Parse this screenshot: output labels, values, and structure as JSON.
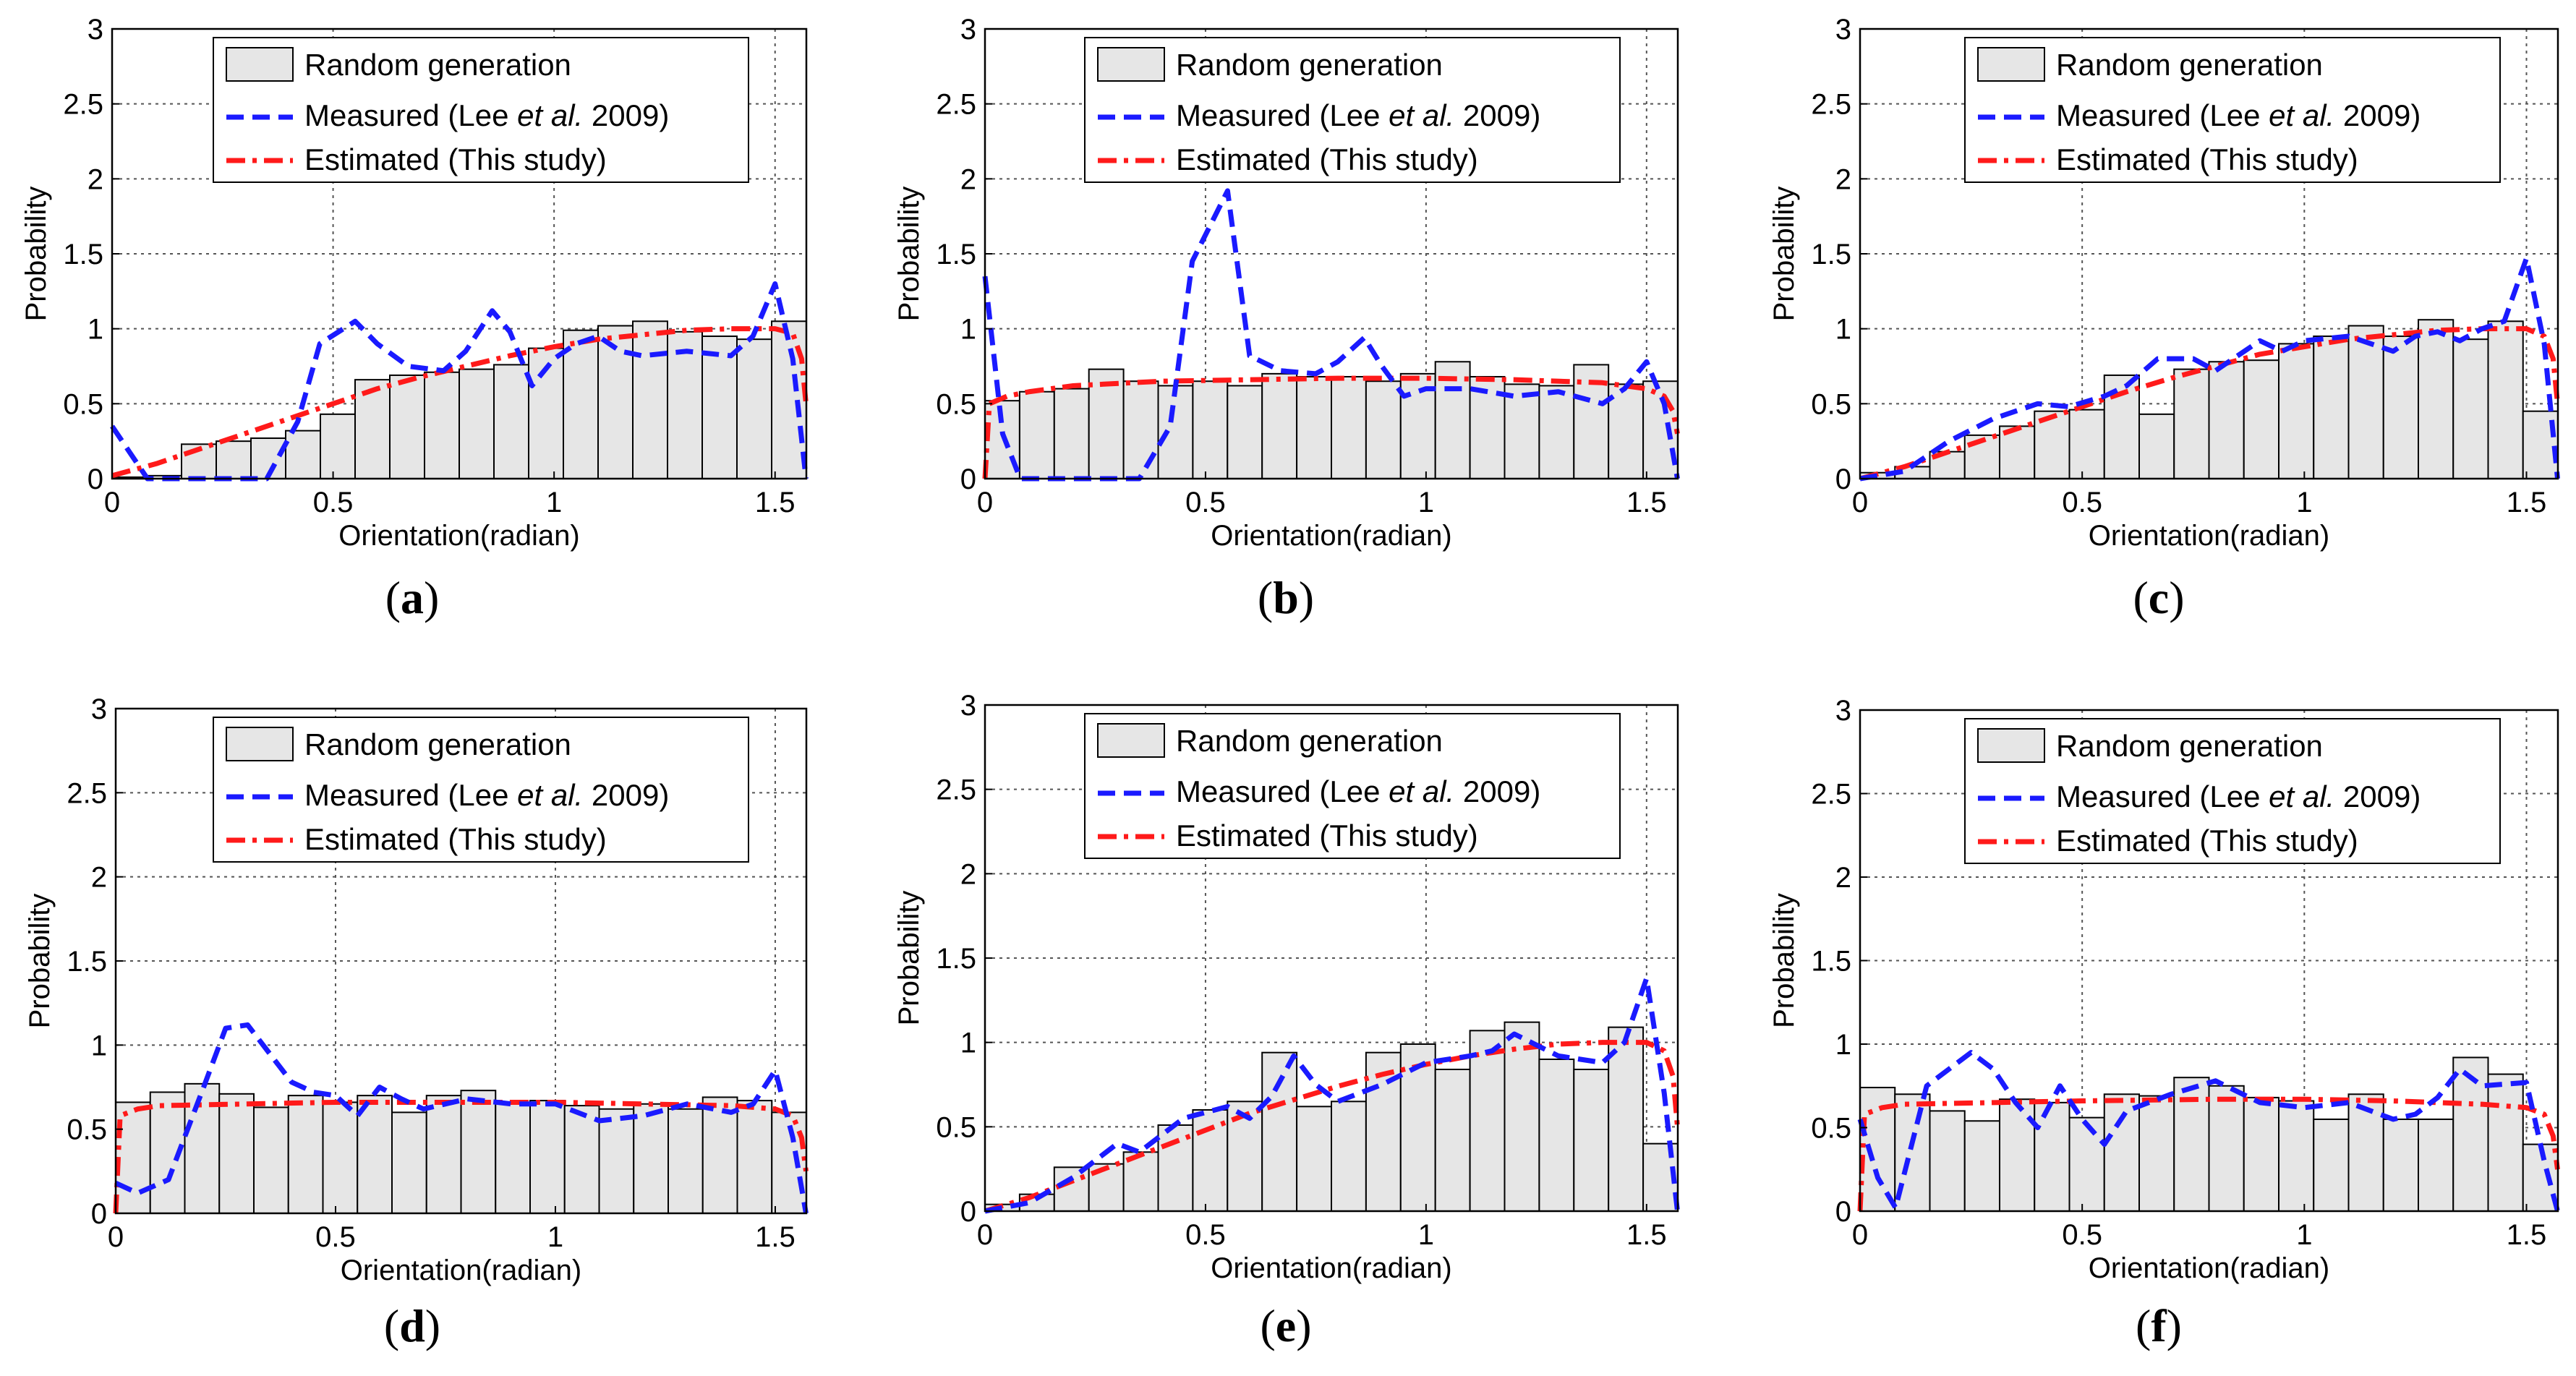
{
  "figure": {
    "common": {
      "type": "bar",
      "xlabel": "Orientation(radian)",
      "ylabel": "Probability",
      "xlim": [
        0,
        1.5708
      ],
      "ylim": [
        0,
        3
      ],
      "xticks": [
        "0",
        "0.5",
        "1",
        "1.5"
      ],
      "yticks": [
        "0",
        "0.5",
        "1",
        "1.5",
        "2",
        "2.5",
        "3"
      ],
      "grid": true,
      "legend_position": "top-right",
      "bin_edges_step": 0.0785,
      "colors": {
        "bar_fill": "#e6e6e6",
        "bar_stroke": "#000000",
        "measured": "#1a1aff",
        "estimated": "#ff1a1a",
        "grid": "#555555"
      }
    }
  },
  "chart_data": [
    {
      "id": "a",
      "caption_letter": "a",
      "legend": {
        "random": "Random generation",
        "measured_prefix": "Measured (Lee ",
        "measured_italic": "et al.",
        "measured_suffix": " 2009)",
        "estimated": "Estimated (This study)"
      },
      "bars": [
        0.01,
        0.02,
        0.23,
        0.25,
        0.27,
        0.32,
        0.43,
        0.66,
        0.69,
        0.71,
        0.73,
        0.76,
        0.87,
        0.99,
        1.02,
        1.05,
        0.98,
        0.95,
        0.93,
        1.05
      ],
      "measured": {
        "x": [
          0,
          0.08,
          0.2,
          0.35,
          0.42,
          0.47,
          0.55,
          0.6,
          0.67,
          0.75,
          0.8,
          0.86,
          0.9,
          0.95,
          1.0,
          1.05,
          1.1,
          1.15,
          1.2,
          1.3,
          1.4,
          1.45,
          1.5,
          1.54,
          1.57
        ],
        "y": [
          0.35,
          0.0,
          0.0,
          0.0,
          0.38,
          0.9,
          1.05,
          0.9,
          0.75,
          0.72,
          0.85,
          1.12,
          0.98,
          0.62,
          0.8,
          0.9,
          0.95,
          0.85,
          0.82,
          0.85,
          0.82,
          0.95,
          1.3,
          0.8,
          0.0
        ]
      },
      "estimated": {
        "x": [
          0,
          0.1,
          0.2,
          0.3,
          0.4,
          0.5,
          0.6,
          0.7,
          0.8,
          0.9,
          1.0,
          1.1,
          1.2,
          1.3,
          1.4,
          1.5,
          1.54,
          1.56,
          1.57
        ],
        "y": [
          0.02,
          0.1,
          0.2,
          0.3,
          0.4,
          0.5,
          0.6,
          0.68,
          0.75,
          0.82,
          0.88,
          0.93,
          0.96,
          0.99,
          1.0,
          1.0,
          0.97,
          0.8,
          0.5
        ]
      }
    },
    {
      "id": "b",
      "caption_letter": "b",
      "legend": {
        "random": "Random generation",
        "measured_prefix": "Measured (Lee ",
        "measured_italic": "et al.",
        "measured_suffix": " 2009)",
        "estimated": "Estimated (This study)"
      },
      "bars": [
        0.52,
        0.58,
        0.6,
        0.73,
        0.65,
        0.62,
        0.65,
        0.62,
        0.7,
        0.68,
        0.68,
        0.65,
        0.7,
        0.78,
        0.68,
        0.63,
        0.62,
        0.76,
        0.63,
        0.65
      ],
      "measured": {
        "x": [
          0,
          0.04,
          0.08,
          0.2,
          0.35,
          0.42,
          0.47,
          0.55,
          0.6,
          0.67,
          0.75,
          0.8,
          0.86,
          0.9,
          0.95,
          1.0,
          1.1,
          1.2,
          1.3,
          1.4,
          1.45,
          1.5,
          1.54,
          1.57
        ],
        "y": [
          1.35,
          0.3,
          0.0,
          0.0,
          0.0,
          0.35,
          1.45,
          1.92,
          0.82,
          0.72,
          0.7,
          0.78,
          0.94,
          0.75,
          0.55,
          0.6,
          0.6,
          0.55,
          0.58,
          0.5,
          0.6,
          0.78,
          0.5,
          0.0
        ]
      },
      "estimated": {
        "x": [
          0,
          0.01,
          0.05,
          0.1,
          0.2,
          0.4,
          0.6,
          0.8,
          1.0,
          1.2,
          1.4,
          1.5,
          1.54,
          1.56,
          1.57
        ],
        "y": [
          0.0,
          0.5,
          0.55,
          0.58,
          0.62,
          0.65,
          0.66,
          0.67,
          0.67,
          0.66,
          0.64,
          0.6,
          0.55,
          0.45,
          0.3
        ]
      }
    },
    {
      "id": "c",
      "caption_letter": "c",
      "legend": {
        "random": "Random generation",
        "measured_prefix": "Measured (Lee ",
        "measured_italic": "et al.",
        "measured_suffix": " 2009)",
        "estimated": "Estimated (This study)"
      },
      "bars": [
        0.04,
        0.08,
        0.18,
        0.29,
        0.35,
        0.45,
        0.46,
        0.69,
        0.43,
        0.73,
        0.78,
        0.79,
        0.9,
        0.95,
        1.02,
        0.95,
        1.06,
        0.93,
        1.05,
        0.45
      ],
      "measured": {
        "x": [
          0,
          0.1,
          0.2,
          0.3,
          0.4,
          0.47,
          0.55,
          0.6,
          0.67,
          0.75,
          0.8,
          0.9,
          0.95,
          1.0,
          1.1,
          1.2,
          1.25,
          1.3,
          1.35,
          1.4,
          1.45,
          1.5,
          1.54,
          1.57
        ],
        "y": [
          0.0,
          0.05,
          0.25,
          0.4,
          0.5,
          0.48,
          0.55,
          0.62,
          0.8,
          0.8,
          0.72,
          0.92,
          0.85,
          0.92,
          0.95,
          0.85,
          0.95,
          0.98,
          0.92,
          1.0,
          1.05,
          1.47,
          0.9,
          0.0
        ]
      },
      "estimated": {
        "x": [
          0,
          0.1,
          0.2,
          0.3,
          0.4,
          0.5,
          0.6,
          0.7,
          0.8,
          0.9,
          1.0,
          1.1,
          1.2,
          1.3,
          1.4,
          1.5,
          1.54,
          1.56,
          1.57
        ],
        "y": [
          0.0,
          0.08,
          0.18,
          0.28,
          0.38,
          0.48,
          0.58,
          0.67,
          0.75,
          0.83,
          0.88,
          0.93,
          0.96,
          0.99,
          1.0,
          1.0,
          0.95,
          0.8,
          0.5
        ]
      }
    },
    {
      "id": "d",
      "caption_letter": "d",
      "legend": {
        "random": "Random generation",
        "measured_prefix": "Measured (Lee ",
        "measured_italic": "et al.",
        "measured_suffix": " 2009)",
        "estimated": "Estimated (This study)"
      },
      "bars": [
        0.66,
        0.72,
        0.77,
        0.71,
        0.63,
        0.7,
        0.66,
        0.7,
        0.6,
        0.7,
        0.73,
        0.66,
        0.67,
        0.64,
        0.62,
        0.65,
        0.62,
        0.69,
        0.67,
        0.6
      ],
      "measured": {
        "x": [
          0,
          0.05,
          0.12,
          0.2,
          0.25,
          0.3,
          0.35,
          0.4,
          0.45,
          0.5,
          0.55,
          0.6,
          0.65,
          0.7,
          0.8,
          0.9,
          1.0,
          1.1,
          1.2,
          1.3,
          1.4,
          1.45,
          1.5,
          1.54,
          1.57
        ],
        "y": [
          0.18,
          0.12,
          0.2,
          0.75,
          1.1,
          1.12,
          0.95,
          0.78,
          0.72,
          0.7,
          0.58,
          0.75,
          0.68,
          0.62,
          0.68,
          0.65,
          0.65,
          0.55,
          0.58,
          0.65,
          0.6,
          0.65,
          0.85,
          0.45,
          0.0
        ]
      },
      "estimated": {
        "x": [
          0,
          0.01,
          0.05,
          0.1,
          0.3,
          0.5,
          0.8,
          1.0,
          1.2,
          1.4,
          1.5,
          1.54,
          1.56,
          1.57
        ],
        "y": [
          0.0,
          0.58,
          0.62,
          0.64,
          0.65,
          0.66,
          0.66,
          0.66,
          0.65,
          0.64,
          0.62,
          0.58,
          0.45,
          0.25
        ]
      }
    },
    {
      "id": "e",
      "caption_letter": "e",
      "legend": {
        "random": "Random generation",
        "measured_prefix": "Measured (Lee ",
        "measured_italic": "et al.",
        "measured_suffix": " 2009)",
        "estimated": "Estimated (This study)"
      },
      "bars": [
        0.04,
        0.1,
        0.26,
        0.28,
        0.35,
        0.51,
        0.6,
        0.65,
        0.94,
        0.62,
        0.65,
        0.94,
        0.99,
        0.84,
        1.07,
        1.12,
        0.9,
        0.84,
        1.09,
        0.4
      ],
      "measured": {
        "x": [
          0,
          0.1,
          0.2,
          0.3,
          0.35,
          0.45,
          0.55,
          0.6,
          0.65,
          0.7,
          0.75,
          0.8,
          0.9,
          1.0,
          1.1,
          1.15,
          1.2,
          1.3,
          1.4,
          1.45,
          1.5,
          1.54,
          1.57
        ],
        "y": [
          0.0,
          0.05,
          0.2,
          0.4,
          0.35,
          0.55,
          0.62,
          0.55,
          0.68,
          0.92,
          0.75,
          0.65,
          0.75,
          0.88,
          0.92,
          0.95,
          1.05,
          0.92,
          0.88,
          1.0,
          1.38,
          0.7,
          0.0
        ]
      },
      "estimated": {
        "x": [
          0,
          0.1,
          0.2,
          0.3,
          0.4,
          0.5,
          0.6,
          0.7,
          0.8,
          0.9,
          1.0,
          1.1,
          1.2,
          1.3,
          1.4,
          1.5,
          1.54,
          1.56,
          1.57
        ],
        "y": [
          0.0,
          0.08,
          0.18,
          0.28,
          0.38,
          0.48,
          0.58,
          0.66,
          0.74,
          0.81,
          0.87,
          0.92,
          0.96,
          0.99,
          1.0,
          1.0,
          0.95,
          0.8,
          0.5
        ]
      }
    },
    {
      "id": "f",
      "caption_letter": "f",
      "legend": {
        "random": "Random generation",
        "measured_prefix": "Measured (Lee ",
        "measured_italic": "et al.",
        "measured_suffix": " 2009)",
        "estimated": "Estimated (This study)"
      },
      "bars": [
        0.74,
        0.7,
        0.6,
        0.54,
        0.67,
        0.65,
        0.56,
        0.7,
        0.69,
        0.8,
        0.75,
        0.68,
        0.66,
        0.55,
        0.7,
        0.55,
        0.55,
        0.92,
        0.82,
        0.4
      ],
      "measured": {
        "x": [
          0,
          0.04,
          0.08,
          0.15,
          0.25,
          0.3,
          0.35,
          0.4,
          0.45,
          0.5,
          0.55,
          0.6,
          0.7,
          0.8,
          0.9,
          1.0,
          1.1,
          1.2,
          1.25,
          1.3,
          1.35,
          1.4,
          1.45,
          1.5,
          1.54,
          1.57
        ],
        "y": [
          0.55,
          0.2,
          0.02,
          0.75,
          0.95,
          0.85,
          0.65,
          0.5,
          0.75,
          0.55,
          0.4,
          0.6,
          0.7,
          0.78,
          0.65,
          0.62,
          0.65,
          0.55,
          0.58,
          0.68,
          0.85,
          0.75,
          0.76,
          0.77,
          0.3,
          0.0
        ]
      },
      "estimated": {
        "x": [
          0,
          0.01,
          0.05,
          0.1,
          0.3,
          0.5,
          0.8,
          1.0,
          1.2,
          1.4,
          1.5,
          1.54,
          1.56,
          1.57
        ],
        "y": [
          0.0,
          0.58,
          0.62,
          0.64,
          0.65,
          0.66,
          0.67,
          0.67,
          0.66,
          0.64,
          0.62,
          0.58,
          0.45,
          0.25
        ]
      }
    }
  ]
}
